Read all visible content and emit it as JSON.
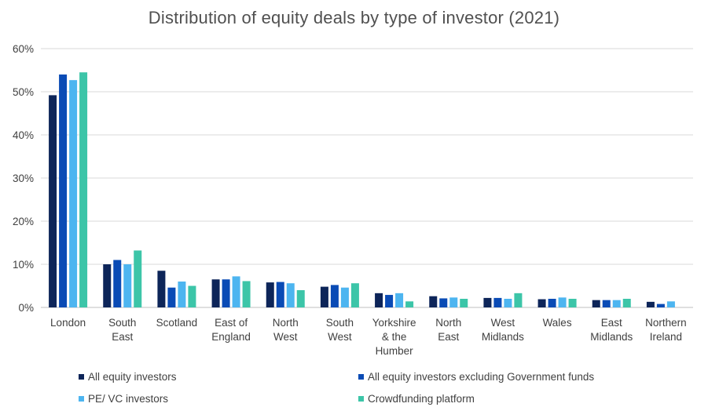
{
  "chart_data": {
    "type": "bar",
    "title": "Distribution of equity deals by type of investor (2021)",
    "xlabel": "",
    "ylabel": "",
    "ylim": [
      0,
      0.6
    ],
    "yticks": [
      "0%",
      "10%",
      "20%",
      "30%",
      "40%",
      "50%",
      "60%"
    ],
    "grid": true,
    "legend_position": "bottom",
    "categories": [
      [
        "London"
      ],
      [
        "South",
        "East"
      ],
      [
        "Scotland"
      ],
      [
        "East of",
        "England"
      ],
      [
        "North",
        "West"
      ],
      [
        "South",
        "West"
      ],
      [
        "Yorkshire",
        "& the",
        "Humber"
      ],
      [
        "North",
        "East"
      ],
      [
        "West",
        "Midlands"
      ],
      [
        "Wales"
      ],
      [
        "East",
        "Midlands"
      ],
      [
        "Northern",
        "Ireland"
      ]
    ],
    "series": [
      {
        "name": "All equity investors",
        "color": "#0d2559",
        "values": [
          0.492,
          0.1,
          0.085,
          0.065,
          0.058,
          0.048,
          0.033,
          0.026,
          0.022,
          0.019,
          0.017,
          0.013
        ]
      },
      {
        "name": "All equity investors excluding Government funds",
        "color": "#0a4bb5",
        "values": [
          0.54,
          0.11,
          0.046,
          0.065,
          0.059,
          0.052,
          0.029,
          0.021,
          0.022,
          0.02,
          0.017,
          0.008
        ]
      },
      {
        "name": "PE/ VC investors",
        "color": "#4db5f0",
        "values": [
          0.527,
          0.1,
          0.06,
          0.072,
          0.056,
          0.046,
          0.033,
          0.023,
          0.02,
          0.023,
          0.017,
          0.014
        ]
      },
      {
        "name": "Crowdfunding platform",
        "color": "#3cc5a8",
        "values": [
          0.545,
          0.132,
          0.05,
          0.061,
          0.04,
          0.056,
          0.014,
          0.02,
          0.033,
          0.02,
          0.02,
          0.0
        ]
      }
    ]
  }
}
